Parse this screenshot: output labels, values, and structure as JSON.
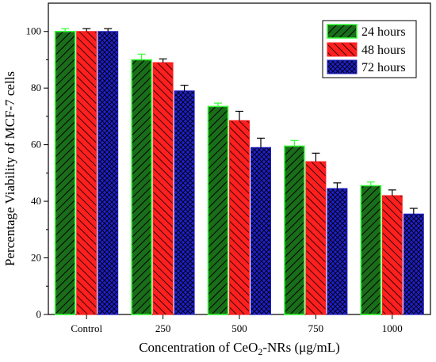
{
  "chart_data": {
    "type": "bar",
    "title": "",
    "xlabel_parts": [
      "Concentration of CeO",
      "2",
      "-NRs (μg/mL)"
    ],
    "ylabel": "Percentage Viability of MCF-7 cells",
    "categories": [
      "Control",
      "250",
      "500",
      "750",
      "1000"
    ],
    "ylim": [
      0,
      110
    ],
    "yticks": [
      "0",
      "20",
      "40",
      "60",
      "80",
      "100"
    ],
    "grid": false,
    "legend_position": "top-right",
    "error_bars": true,
    "series": [
      {
        "name": "24 hours",
        "values": [
          100,
          90,
          73.5,
          59.5,
          45.5
        ],
        "errors": [
          1,
          2,
          1.2,
          2,
          1.3
        ],
        "color": "#1a6e1a",
        "hatch": "#000000",
        "edge": "#33ff33"
      },
      {
        "name": "48 hours",
        "values": [
          100,
          89,
          68.5,
          54,
          42
        ],
        "errors": [
          1,
          1.3,
          3.3,
          3,
          2
        ],
        "color": "#ff1f1f",
        "hatch": "#000000",
        "edge": "#ff1f1f"
      },
      {
        "name": "72 hours",
        "values": [
          100,
          79,
          59,
          44.5,
          35.5
        ],
        "errors": [
          1,
          2,
          3.3,
          2,
          2
        ],
        "color": "#1f1fcc",
        "hatch": "#000000",
        "edge": "#1f1fcc"
      }
    ]
  }
}
